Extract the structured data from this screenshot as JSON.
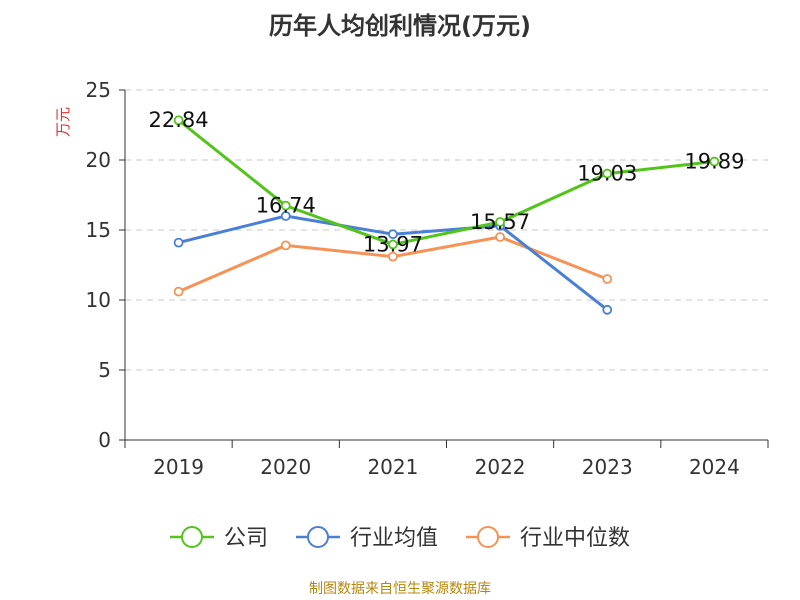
{
  "chart_data": {
    "type": "line",
    "title": "历年人均创利情况(万元)",
    "ylabel": "万元",
    "xlabel": "",
    "categories": [
      "2019",
      "2020",
      "2021",
      "2022",
      "2023",
      "2024"
    ],
    "ylim": [
      0,
      25
    ],
    "yticks": [
      "0",
      "5",
      "10",
      "15",
      "20",
      "25"
    ],
    "grid": true,
    "legend_position": "bottom",
    "series": [
      {
        "name": "公司",
        "color": "#52c41a",
        "values": [
          22.84,
          16.74,
          13.97,
          15.57,
          19.03,
          19.89
        ],
        "labels": [
          "22.84",
          "16.74",
          "13.97",
          "15.57",
          "19.03",
          "19.89"
        ]
      },
      {
        "name": "行业均值",
        "color": "#4a7fd6",
        "values": [
          14.1,
          16.0,
          14.7,
          15.3,
          9.3,
          null
        ]
      },
      {
        "name": "行业中位数",
        "color": "#f79256",
        "values": [
          10.6,
          13.9,
          13.1,
          14.5,
          11.5,
          null
        ]
      }
    ]
  },
  "footer": {
    "source": "制图数据来自恒生聚源数据库"
  }
}
